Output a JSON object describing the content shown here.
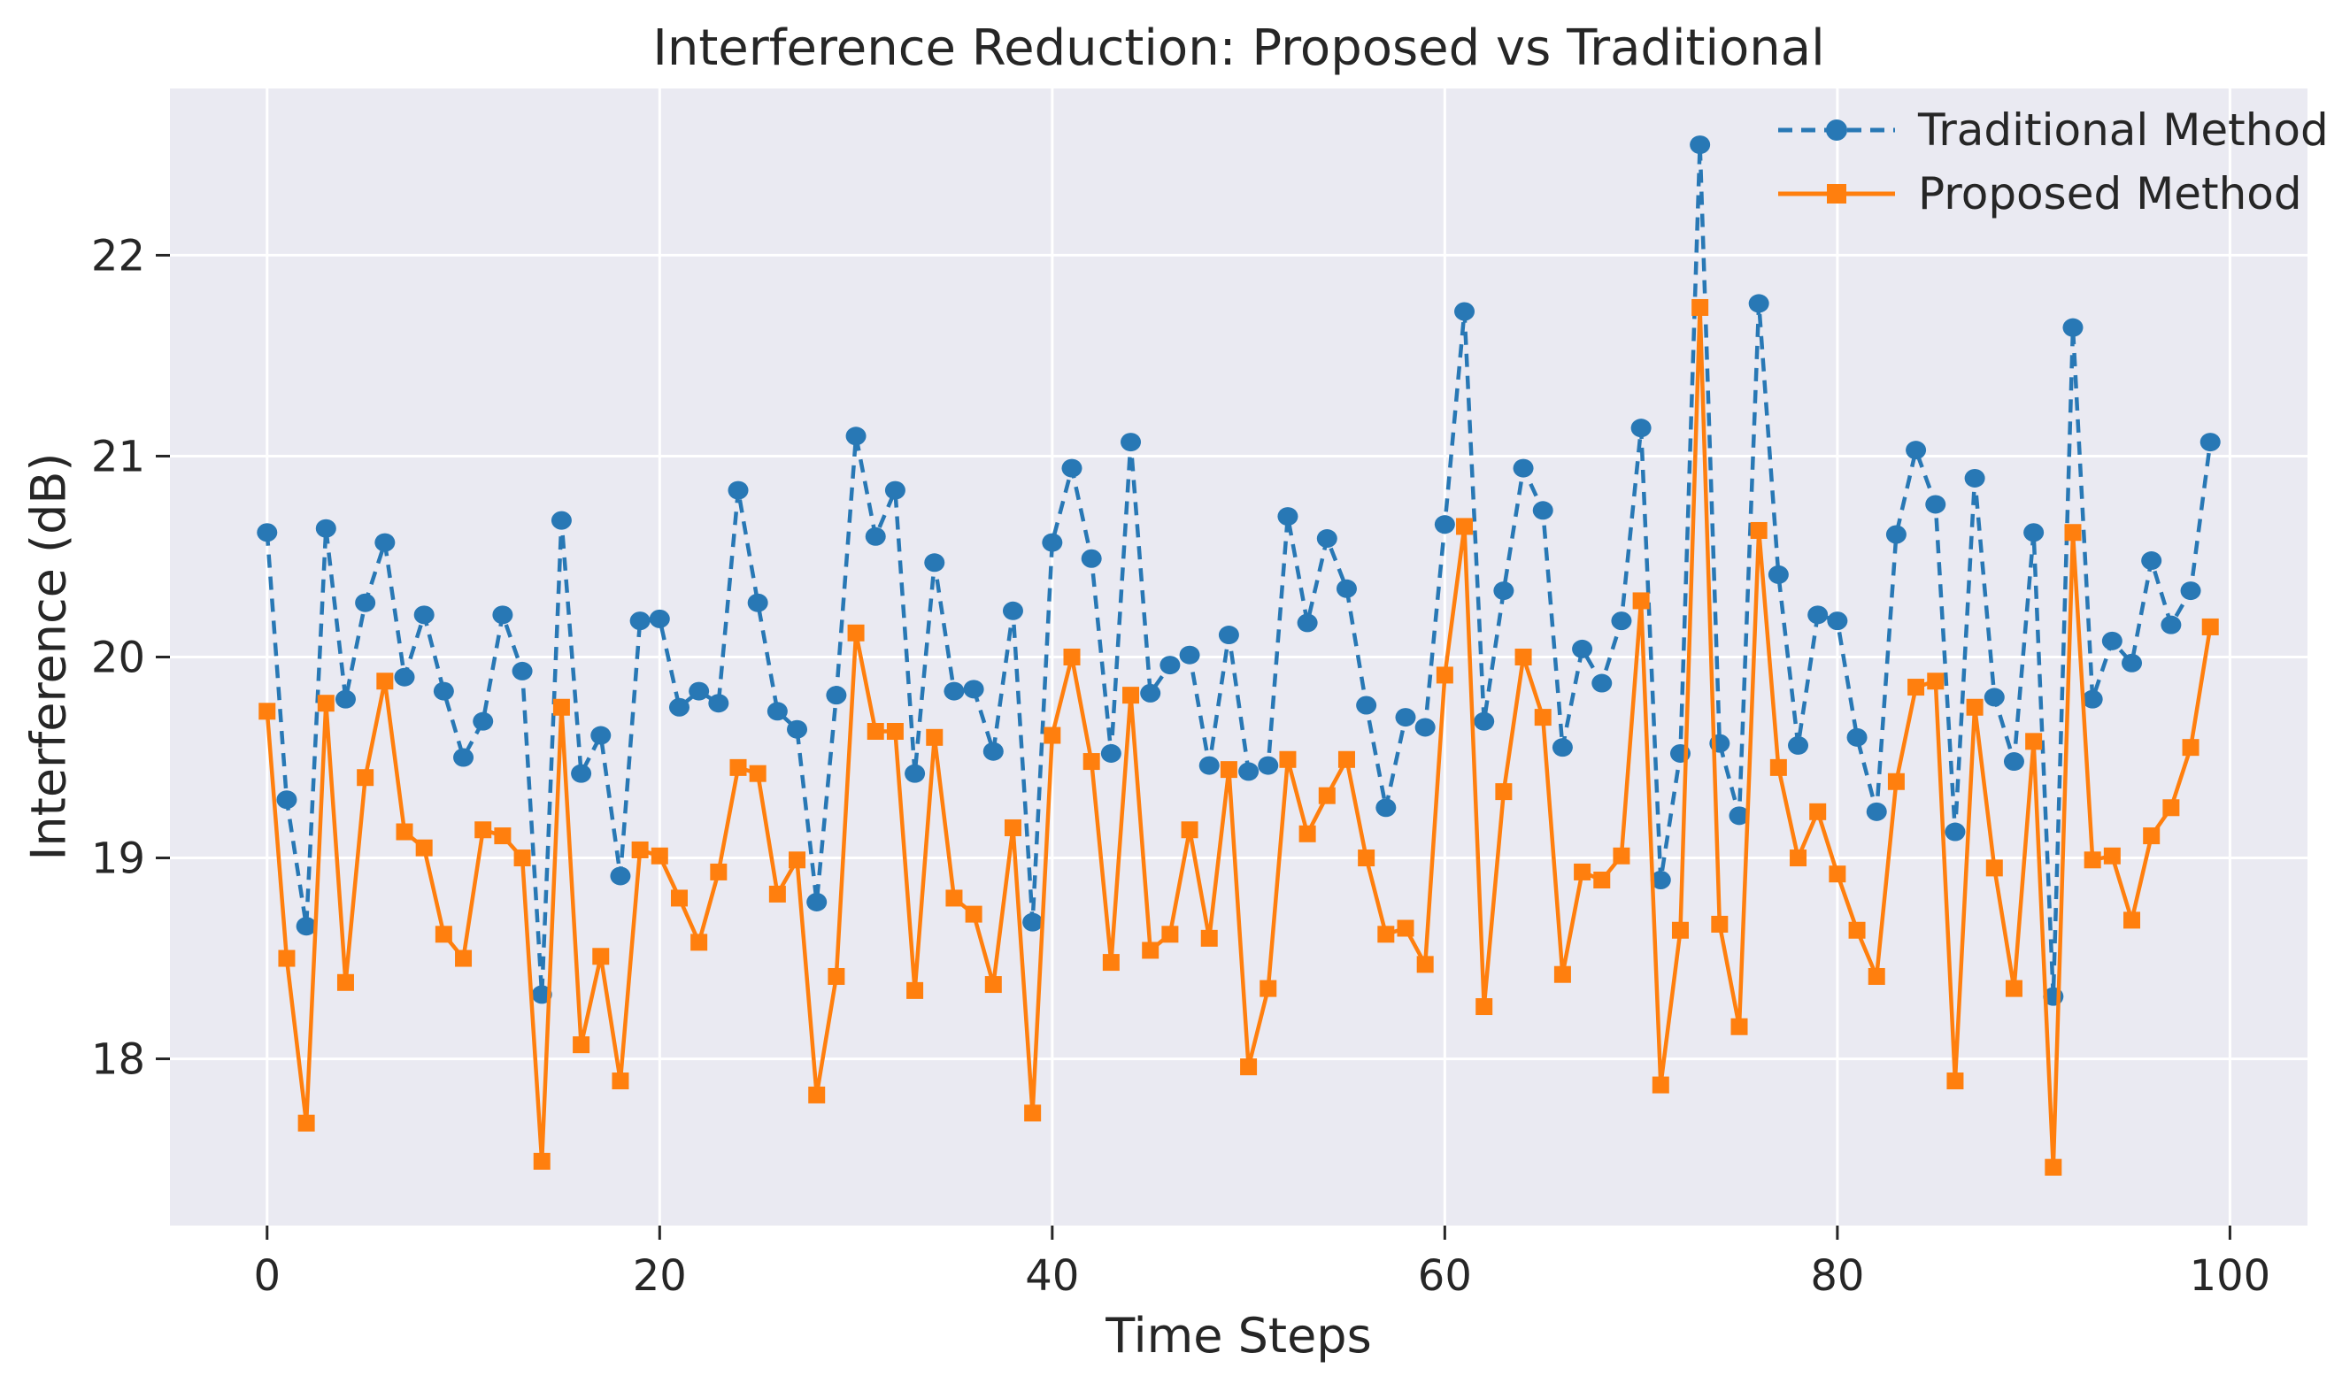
{
  "figure": {
    "background_color": "#ffffff",
    "axes_background_color": "#eaeaf2",
    "grid_color": "#ffffff",
    "text_color": "#262626",
    "tick_color": "#262626"
  },
  "chart_data": {
    "type": "line",
    "title": "Interference Reduction: Proposed vs Traditional",
    "xlabel": "Time Steps",
    "ylabel": "Interference (dB)",
    "x_is_index": true,
    "x_start": 0,
    "x_step": 1,
    "n_points": 100,
    "xlim": [
      -4.95,
      103.95
    ],
    "ylim": [
      17.17,
      22.83
    ],
    "xticks": [
      0,
      20,
      40,
      60,
      80,
      100
    ],
    "yticks": [
      18,
      19,
      20,
      21,
      22
    ],
    "grid": true,
    "legend_position": "upper right",
    "series": [
      {
        "name": "Traditional Method",
        "color": "#2878b5",
        "line_style": "dashed",
        "marker": "circle",
        "values": [
          20.62,
          19.29,
          18.66,
          20.64,
          19.79,
          20.27,
          20.57,
          19.9,
          20.21,
          19.83,
          19.5,
          19.68,
          20.21,
          19.93,
          18.32,
          20.68,
          19.42,
          19.61,
          18.91,
          20.18,
          20.19,
          19.75,
          19.83,
          19.77,
          20.83,
          20.27,
          19.73,
          19.64,
          18.78,
          19.81,
          21.1,
          20.6,
          20.83,
          19.42,
          20.47,
          19.83,
          19.84,
          19.53,
          20.23,
          18.68,
          20.57,
          20.94,
          20.49,
          19.52,
          21.07,
          19.82,
          19.96,
          20.01,
          19.46,
          20.11,
          19.43,
          19.46,
          20.7,
          20.17,
          20.59,
          20.34,
          19.76,
          19.25,
          19.7,
          19.65,
          20.66,
          21.72,
          19.68,
          20.33,
          20.94,
          20.73,
          19.55,
          20.04,
          19.87,
          20.18,
          21.14,
          18.89,
          19.52,
          22.55,
          19.57,
          19.21,
          21.76,
          20.41,
          19.56,
          20.21,
          20.18,
          19.6,
          19.23,
          20.61,
          21.03,
          20.76,
          19.13,
          20.89,
          19.8,
          19.48,
          20.62,
          18.31,
          21.64,
          19.79,
          20.08,
          19.97,
          20.48,
          20.16,
          20.33,
          21.07
        ]
      },
      {
        "name": "Proposed Method",
        "color": "#ff7f0e",
        "line_style": "solid",
        "marker": "square",
        "values": [
          19.73,
          18.5,
          17.68,
          19.77,
          18.38,
          19.4,
          19.88,
          19.13,
          19.05,
          18.62,
          18.5,
          19.14,
          19.11,
          19.0,
          17.49,
          19.75,
          18.07,
          18.51,
          17.89,
          19.04,
          19.01,
          18.8,
          18.58,
          18.93,
          19.45,
          19.42,
          18.82,
          18.99,
          17.82,
          18.41,
          20.12,
          19.63,
          19.63,
          18.34,
          19.6,
          18.8,
          18.72,
          18.37,
          19.15,
          17.73,
          19.61,
          20.0,
          19.48,
          18.48,
          19.81,
          18.54,
          18.62,
          19.14,
          18.6,
          19.44,
          17.96,
          18.35,
          19.49,
          19.12,
          19.31,
          19.49,
          19.0,
          18.62,
          18.65,
          18.47,
          19.91,
          20.65,
          18.26,
          19.33,
          20.0,
          19.7,
          18.42,
          18.93,
          18.89,
          19.01,
          20.28,
          17.87,
          18.64,
          21.74,
          18.67,
          18.16,
          20.63,
          19.45,
          19.0,
          19.23,
          18.92,
          18.64,
          18.41,
          19.38,
          19.85,
          19.88,
          17.89,
          19.75,
          18.95,
          18.35,
          19.58,
          17.46,
          20.62,
          18.99,
          19.01,
          18.69,
          19.11,
          19.25,
          19.55,
          20.15
        ]
      }
    ]
  }
}
